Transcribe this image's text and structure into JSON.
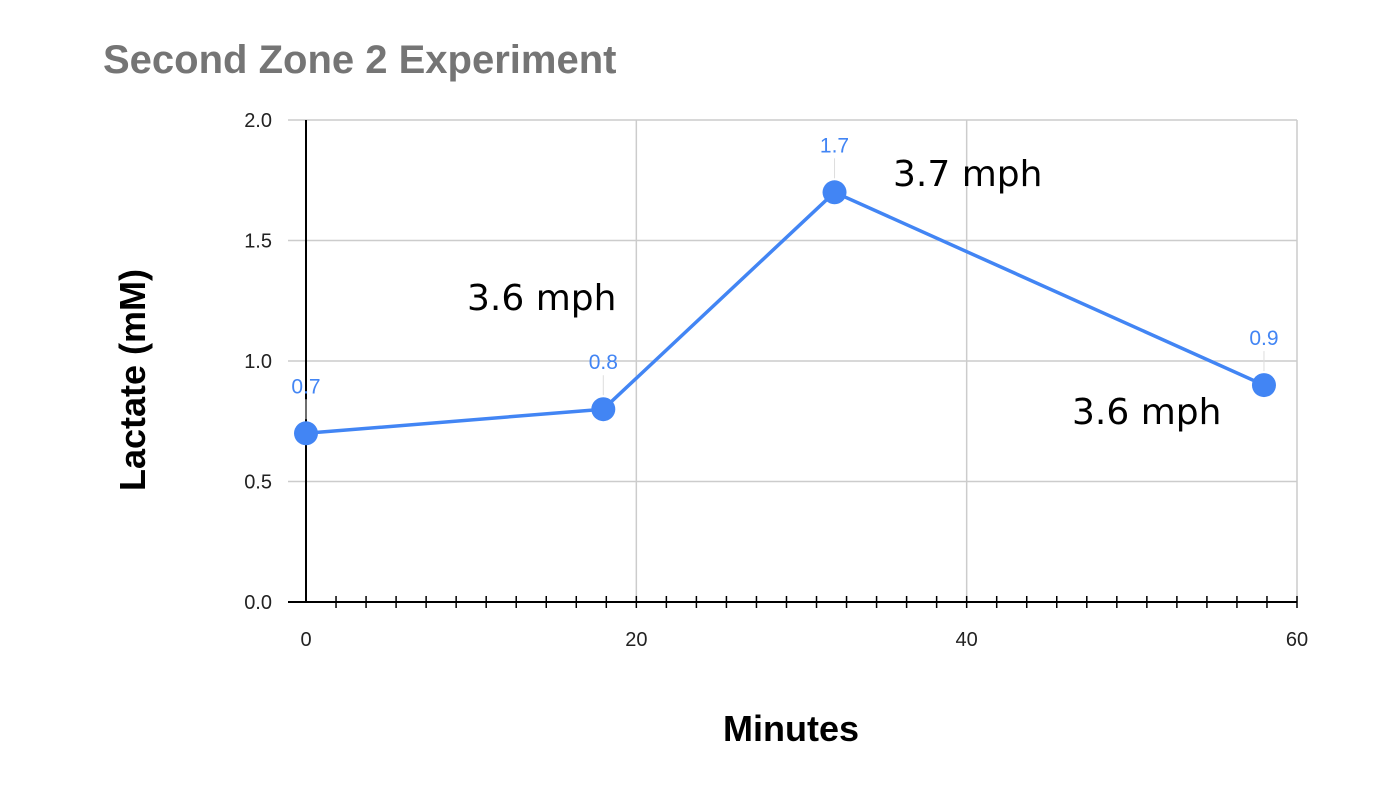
{
  "chart_data": {
    "type": "line",
    "title": "Second Zone 2 Experiment",
    "xlabel": "Minutes",
    "ylabel": "Lactate (mM)",
    "xlim": [
      0,
      60
    ],
    "ylim": [
      0,
      2.0
    ],
    "x_ticks": [
      0,
      20,
      40,
      60
    ],
    "y_ticks": [
      "0.0",
      "0.5",
      "1.0",
      "1.5",
      "2.0"
    ],
    "grid": true,
    "legend": "none",
    "series_color": "#4285f4",
    "series": [
      {
        "x": [
          0,
          18,
          32,
          58
        ],
        "y": [
          0.7,
          0.8,
          1.7,
          0.9
        ],
        "data_labels": [
          "0.7",
          "0.8",
          "1.7",
          "0.9"
        ]
      }
    ],
    "annotations": [
      "3.6 mph",
      "3.7 mph",
      "3.6 mph"
    ]
  }
}
